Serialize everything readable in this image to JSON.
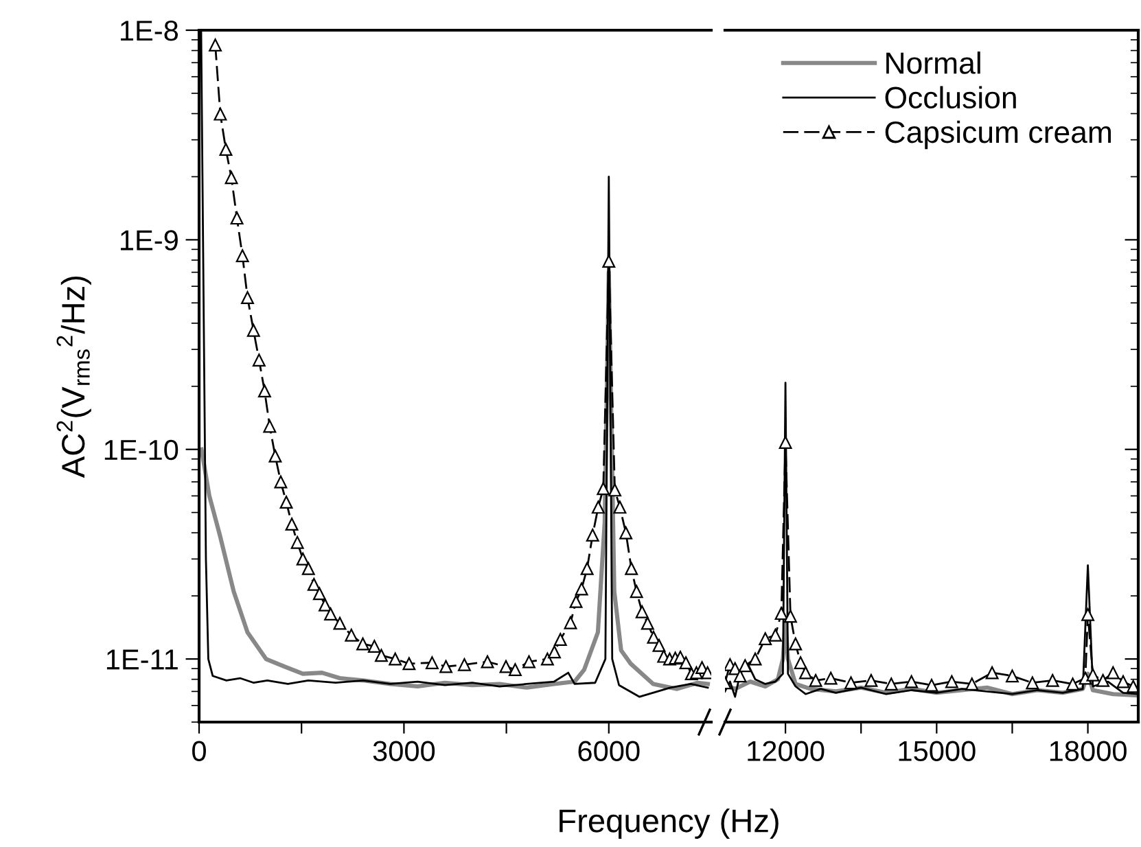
{
  "chart_data": [
    {
      "type": "line",
      "xlabel": "Frequency (Hz)",
      "ylabel": "AC$^{2}$(V$_{rms}$$^{2}$/Hz)",
      "log": "y",
      "grid": false,
      "legend": "top right",
      "xlim": [
        0,
        7500
      ],
      "xticks": [
        0,
        {
          "value": 1500,
          "label": null
        },
        3000,
        {
          "value": 4500,
          "label": null
        },
        6000
      ],
      "ylim": [
        5e-12,
        1e-08
      ],
      "yticks": [
        {
          "value": 1e-11,
          "label": "1E-11"
        },
        {
          "value": 1e-10,
          "label": "1E-10"
        },
        {
          "value": 1e-09,
          "label": "1E-9"
        },
        {
          "value": 1e-08,
          "label": "1E-8"
        }
      ],
      "series": [
        {
          "name": "Normal",
          "color": "#888888",
          "marker": "none",
          "line_style": "solid",
          "x": [
            35,
            150,
            304,
            507,
            709,
            980,
            1250,
            1520,
            1800,
            2060,
            2400,
            2800,
            3200,
            3600,
            4000,
            4400,
            4800,
            5200,
            5500,
            5640,
            5840,
            5940,
            6000,
            6080,
            6180,
            6320,
            6650,
            7000,
            7300,
            7450
          ],
          "values": [
            1e-10,
            6e-11,
            3.9e-11,
            2.1e-11,
            1.34e-11,
            1e-11,
            9.2e-12,
            8.5e-12,
            8.6e-12,
            8.1e-12,
            7.9e-12,
            7.6e-12,
            7.4e-12,
            7.7e-12,
            7.5e-12,
            7.6e-12,
            7.3e-12,
            7.6e-12,
            7.8e-12,
            8.9e-12,
            1.34e-11,
            4.5e-11,
            7e-10,
            2.1e-11,
            1.1e-11,
            9.5e-12,
            7.6e-12,
            7.2e-12,
            7.7e-12,
            7.6e-12
          ]
        },
        {
          "name": "Occlusion",
          "color": "#000000",
          "marker": "none",
          "line_style": "solid",
          "x": [
            30,
            100,
            135,
            200,
            400,
            600,
            800,
            1000,
            1300,
            1600,
            2000,
            2400,
            2800,
            3200,
            3600,
            4000,
            4400,
            4800,
            5200,
            5406,
            5500,
            5800,
            5950,
            6000,
            6050,
            6150,
            6450,
            6900,
            7200,
            7450
          ],
          "values": [
            1e-08,
            3e-11,
            1e-11,
            8.3e-12,
            7.9e-12,
            8.1e-12,
            7.7e-12,
            7.9e-12,
            7.6e-12,
            7.9e-12,
            7.7e-12,
            7.9e-12,
            7.6e-12,
            7.8e-12,
            7.5e-12,
            7.7e-12,
            7.4e-12,
            7.6e-12,
            7.8e-12,
            8.6e-12,
            7.6e-12,
            7.7e-12,
            1e-11,
            2e-09,
            1e-11,
            7.5e-12,
            6.6e-12,
            7.3e-12,
            7.6e-12,
            7.3e-12
          ]
        },
        {
          "name": "Capsicum cream",
          "color": "#000000",
          "marker": "triangle",
          "line_style": "dashed",
          "x": [
            237,
            311,
            392,
            473,
            554,
            635,
            709,
            797,
            878,
            959,
            1034,
            1115,
            1196,
            1277,
            1358,
            1439,
            1520,
            1601,
            1682,
            1763,
            1845,
            1926,
            2061,
            2230,
            2398,
            2567,
            2669,
            2872,
            3075,
            3412,
            3615,
            3885,
            4223,
            4494,
            4629,
            4831,
            5101,
            5203,
            5291,
            5439,
            5520,
            5601,
            5682,
            5763,
            5845,
            5919,
            6000,
            6088,
            6162,
            6250,
            6331,
            6406,
            6487,
            6568,
            6655,
            6736,
            6804,
            6891,
            6973,
            7048,
            7129,
            7210,
            7283,
            7365,
            7446
          ],
          "values": [
            8.5e-09,
            3.98e-09,
            2.7e-09,
            1.98e-09,
            1.27e-09,
            8.4e-10,
            5.3e-10,
            3.7e-10,
            2.67e-10,
            1.9e-10,
            1.29e-10,
            9.3e-11,
            7e-11,
            5.6e-11,
            4.4e-11,
            3.6e-11,
            3e-11,
            2.7e-11,
            2.27e-11,
            2.05e-11,
            1.81e-11,
            1.64e-11,
            1.48e-11,
            1.3e-11,
            1.18e-11,
            1.15e-11,
            1.04e-11,
            1e-11,
            9.5e-12,
            9.6e-12,
            9.2e-12,
            9.4e-12,
            9.7e-12,
            9.2e-12,
            8.9e-12,
            9.7e-12,
            1e-11,
            1.08e-11,
            1.24e-11,
            1.49e-11,
            1.88e-11,
            2.16e-11,
            2.7e-11,
            3.9e-11,
            5.3e-11,
            6.5e-11,
            7.9e-10,
            6.4e-11,
            5.3e-11,
            4e-11,
            2.7e-11,
            2.1e-11,
            1.68e-11,
            1.48e-11,
            1.27e-11,
            1.16e-11,
            1.03e-11,
            1e-11,
            1.01e-11,
            1.02e-11,
            9.6e-12,
            8.5e-12,
            8.6e-12,
            9.1e-12,
            8.6e-12
          ]
        }
      ]
    },
    {
      "type": "line",
      "log": "y",
      "grid": false,
      "tick_labels": "x",
      "xlim": [
        10800,
        19000
      ],
      "xticks": [
        12000,
        {
          "value": 13500,
          "label": null
        },
        15000,
        {
          "value": 16500,
          "label": null
        },
        18000
      ],
      "ylim": [
        5e-12,
        1e-08
      ],
      "yticks": [
        {
          "value": 1e-11,
          "label": null
        },
        {
          "value": 1e-10,
          "label": null
        },
        {
          "value": 1e-09,
          "label": null
        },
        {
          "value": 1e-08,
          "label": null
        }
      ],
      "series": [
        {
          "color": "#888888",
          "marker": "none",
          "line_style": "solid",
          "x": [
            10800,
            11000,
            11300,
            11600,
            11850,
            11950,
            12000,
            12050,
            12200,
            12500,
            13000,
            13500,
            14000,
            14500,
            15000,
            15500,
            16000,
            16500,
            17000,
            17500,
            17900,
            18000,
            18100,
            18500,
            19000
          ],
          "values": [
            7.5e-12,
            7.2e-12,
            7.8e-12,
            7.4e-12,
            8e-12,
            1e-11,
            1.5e-11,
            1e-11,
            7.6e-12,
            7.2e-12,
            7e-12,
            7.3e-12,
            6.9e-12,
            7.2e-12,
            6.9e-12,
            7.1e-12,
            7.3e-12,
            6.8e-12,
            7.1e-12,
            6.9e-12,
            7.2e-12,
            8.5e-12,
            7.1e-12,
            6.8e-12,
            6.7e-12
          ]
        },
        {
          "color": "#000000",
          "marker": "none",
          "line_style": "solid",
          "x": [
            10800,
            10900,
            11000,
            11100,
            11250,
            11400,
            11600,
            11800,
            11950,
            12000,
            12050,
            12200,
            12400,
            12700,
            13000,
            13500,
            14000,
            14500,
            15000,
            15500,
            16000,
            16500,
            17000,
            17500,
            17900,
            18000,
            18100,
            18400,
            18700,
            19000
          ],
          "values": [
            7e-12,
            7.8e-12,
            6.6e-12,
            8.5e-12,
            9.5e-12,
            8e-12,
            7.6e-12,
            7.8e-12,
            8.5e-12,
            2.08e-10,
            8.5e-12,
            7.4e-12,
            6.8e-12,
            7.2e-12,
            6.9e-12,
            7.3e-12,
            6.8e-12,
            7.1e-12,
            6.9e-12,
            7.2e-12,
            7e-12,
            6.8e-12,
            7.1e-12,
            6.9e-12,
            7.2e-12,
            2.8e-11,
            7.4e-12,
            7.8e-12,
            6.9e-12,
            6.8e-12
          ]
        },
        {
          "color": "#000000",
          "marker": "triangle",
          "line_style": "dashed",
          "x": [
            10800,
            10900,
            11000,
            11100,
            11200,
            11400,
            11600,
            11800,
            11918,
            12000,
            12100,
            12200,
            12300,
            12400,
            12600,
            12900,
            13300,
            13700,
            14100,
            14500,
            14900,
            15300,
            15700,
            16100,
            16500,
            16900,
            17300,
            17700,
            17950,
            18000,
            18100,
            18300,
            18500,
            18700,
            18900
          ],
          "values": [
            7.7e-12,
            9.4e-12,
            9e-12,
            8.3e-12,
            9.3e-12,
            1e-11,
            1.25e-11,
            1.3e-11,
            1.65e-11,
            1.08e-10,
            1.6e-11,
            1.18e-11,
            9.6e-12,
            8.6e-12,
            7.9e-12,
            8.1e-12,
            7.7e-12,
            7.9e-12,
            7.6e-12,
            7.8e-12,
            7.5e-12,
            7.8e-12,
            7.6e-12,
            8.6e-12,
            8.3e-12,
            7.7e-12,
            7.9e-12,
            7.6e-12,
            8.1e-12,
            1.63e-11,
            8.4e-12,
            7.9e-12,
            8.6e-12,
            7.8e-12,
            7.4e-12
          ]
        }
      ]
    }
  ]
}
